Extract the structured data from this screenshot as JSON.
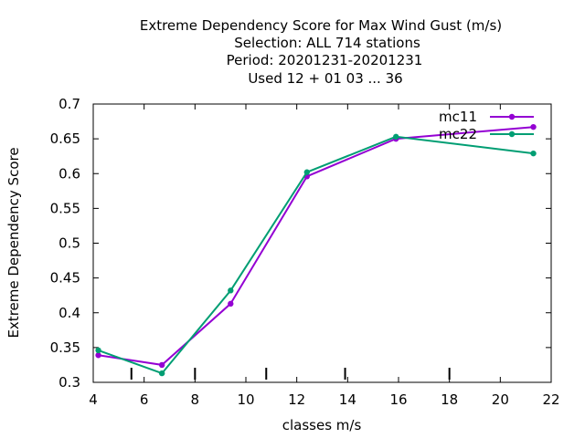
{
  "chart_data": {
    "type": "line",
    "title_lines": [
      "Extreme Dependency Score  for Max Wind Gust (m/s)",
      "Selection: ALL     714 stations",
      "Period: 20201231-20201231",
      "Used  12 + 01 03 ... 36"
    ],
    "xlabel": "classes m/s",
    "ylabel": "Extreme Dependency Score",
    "xlim": [
      4,
      22
    ],
    "ylim": [
      0.3,
      0.7
    ],
    "x_ticks": [
      4,
      6,
      8,
      10,
      12,
      14,
      16,
      18,
      20,
      22
    ],
    "y_ticks": [
      0.3,
      0.35,
      0.4,
      0.45,
      0.5,
      0.55,
      0.6,
      0.65,
      0.7
    ],
    "x_tick_labels": [
      "4",
      "6",
      "8",
      "10",
      "12",
      "14",
      "16",
      "18",
      "20",
      "22"
    ],
    "y_tick_labels": [
      "0.3",
      "0.35",
      "0.4",
      "0.45",
      "0.5",
      "0.55",
      "0.6",
      "0.65",
      "0.7"
    ],
    "class_markers": [
      5.5,
      8,
      10.8,
      13.9,
      18
    ],
    "legend_position": "top-right",
    "grid": false,
    "series": [
      {
        "name": "mc11",
        "color": "#9400d3",
        "x": [
          4.2,
          6.7,
          9.4,
          12.4,
          15.9,
          21.3
        ],
        "y": [
          0.339,
          0.325,
          0.413,
          0.596,
          0.65,
          0.667
        ]
      },
      {
        "name": "mc22",
        "color": "#009e73",
        "x": [
          4.2,
          6.7,
          9.4,
          12.4,
          15.9,
          21.3
        ],
        "y": [
          0.346,
          0.313,
          0.432,
          0.602,
          0.653,
          0.629
        ]
      }
    ]
  }
}
